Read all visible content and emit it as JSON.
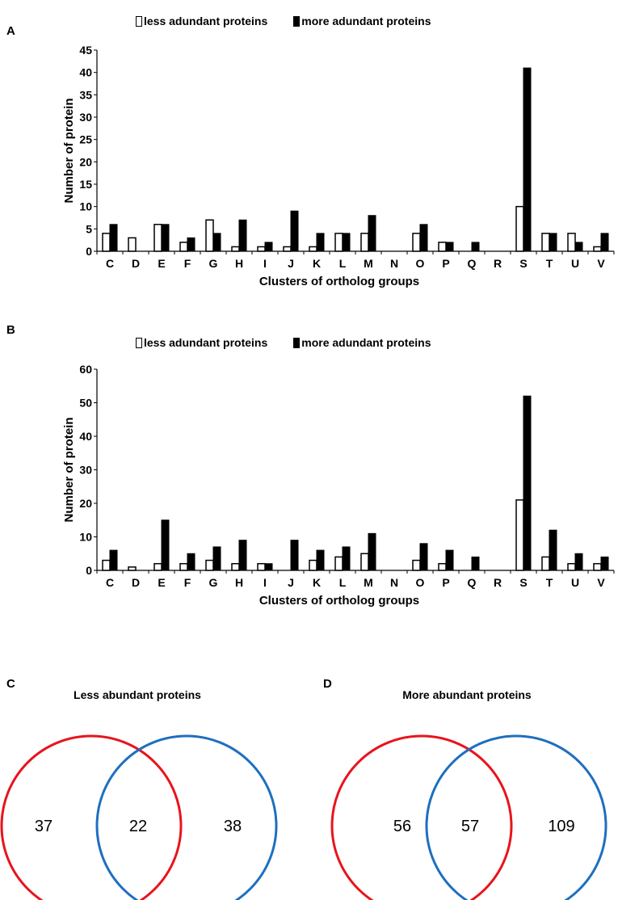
{
  "chart_data": [
    {
      "panel": "A",
      "type": "bar",
      "categories": [
        "C",
        "D",
        "E",
        "F",
        "G",
        "H",
        "I",
        "J",
        "K",
        "L",
        "M",
        "N",
        "O",
        "P",
        "Q",
        "R",
        "S",
        "T",
        "U",
        "V"
      ],
      "series": [
        {
          "name": "less adundant proteins",
          "values": [
            4,
            3,
            6,
            2,
            7,
            1,
            1,
            1,
            1,
            4,
            4,
            0,
            4,
            2,
            0,
            0,
            10,
            4,
            4,
            1
          ]
        },
        {
          "name": "more adundant proteins",
          "values": [
            6,
            0,
            6,
            3,
            4,
            7,
            2,
            9,
            4,
            4,
            8,
            0,
            6,
            2,
            2,
            0,
            41,
            4,
            2,
            4
          ]
        }
      ],
      "xlabel": "Clusters of ortholog groups",
      "ylabel": "Number of protein",
      "ylim": [
        0,
        45
      ],
      "yticks": [
        "0",
        "5",
        "10",
        "15",
        "20",
        "25",
        "30",
        "35",
        "40",
        "45"
      ]
    },
    {
      "panel": "B",
      "type": "bar",
      "categories": [
        "C",
        "D",
        "E",
        "F",
        "G",
        "H",
        "I",
        "J",
        "K",
        "L",
        "M",
        "N",
        "O",
        "P",
        "Q",
        "R",
        "S",
        "T",
        "U",
        "V"
      ],
      "series": [
        {
          "name": "less adundant proteins",
          "values": [
            3,
            1,
            2,
            2,
            3,
            2,
            2,
            0,
            3,
            4,
            5,
            0,
            3,
            2,
            0,
            0,
            21,
            4,
            2,
            2
          ]
        },
        {
          "name": "more adundant proteins",
          "values": [
            6,
            0,
            15,
            5,
            7,
            9,
            2,
            9,
            6,
            7,
            11,
            0,
            8,
            6,
            4,
            0,
            52,
            12,
            5,
            4
          ]
        }
      ],
      "xlabel": "Clusters of ortholog groups",
      "ylabel": "Number of protein",
      "ylim": [
        0,
        60
      ],
      "yticks": [
        "0",
        "10",
        "20",
        "30",
        "40",
        "50",
        "60"
      ]
    }
  ],
  "venn": [
    {
      "panel": "C",
      "title": "Less abundant proteins",
      "left_only": "37",
      "both": "22",
      "right_only": "38",
      "left_color": "#e8141c",
      "right_color": "#1e6fbf"
    },
    {
      "panel": "D",
      "title": "More abundant proteins",
      "left_only": "56",
      "both": "57",
      "right_only": "109",
      "left_color": "#e8141c",
      "right_color": "#1e6fbf"
    }
  ],
  "legend": {
    "open_label": "less adundant proteins",
    "solid_label": "more adundant proteins"
  }
}
